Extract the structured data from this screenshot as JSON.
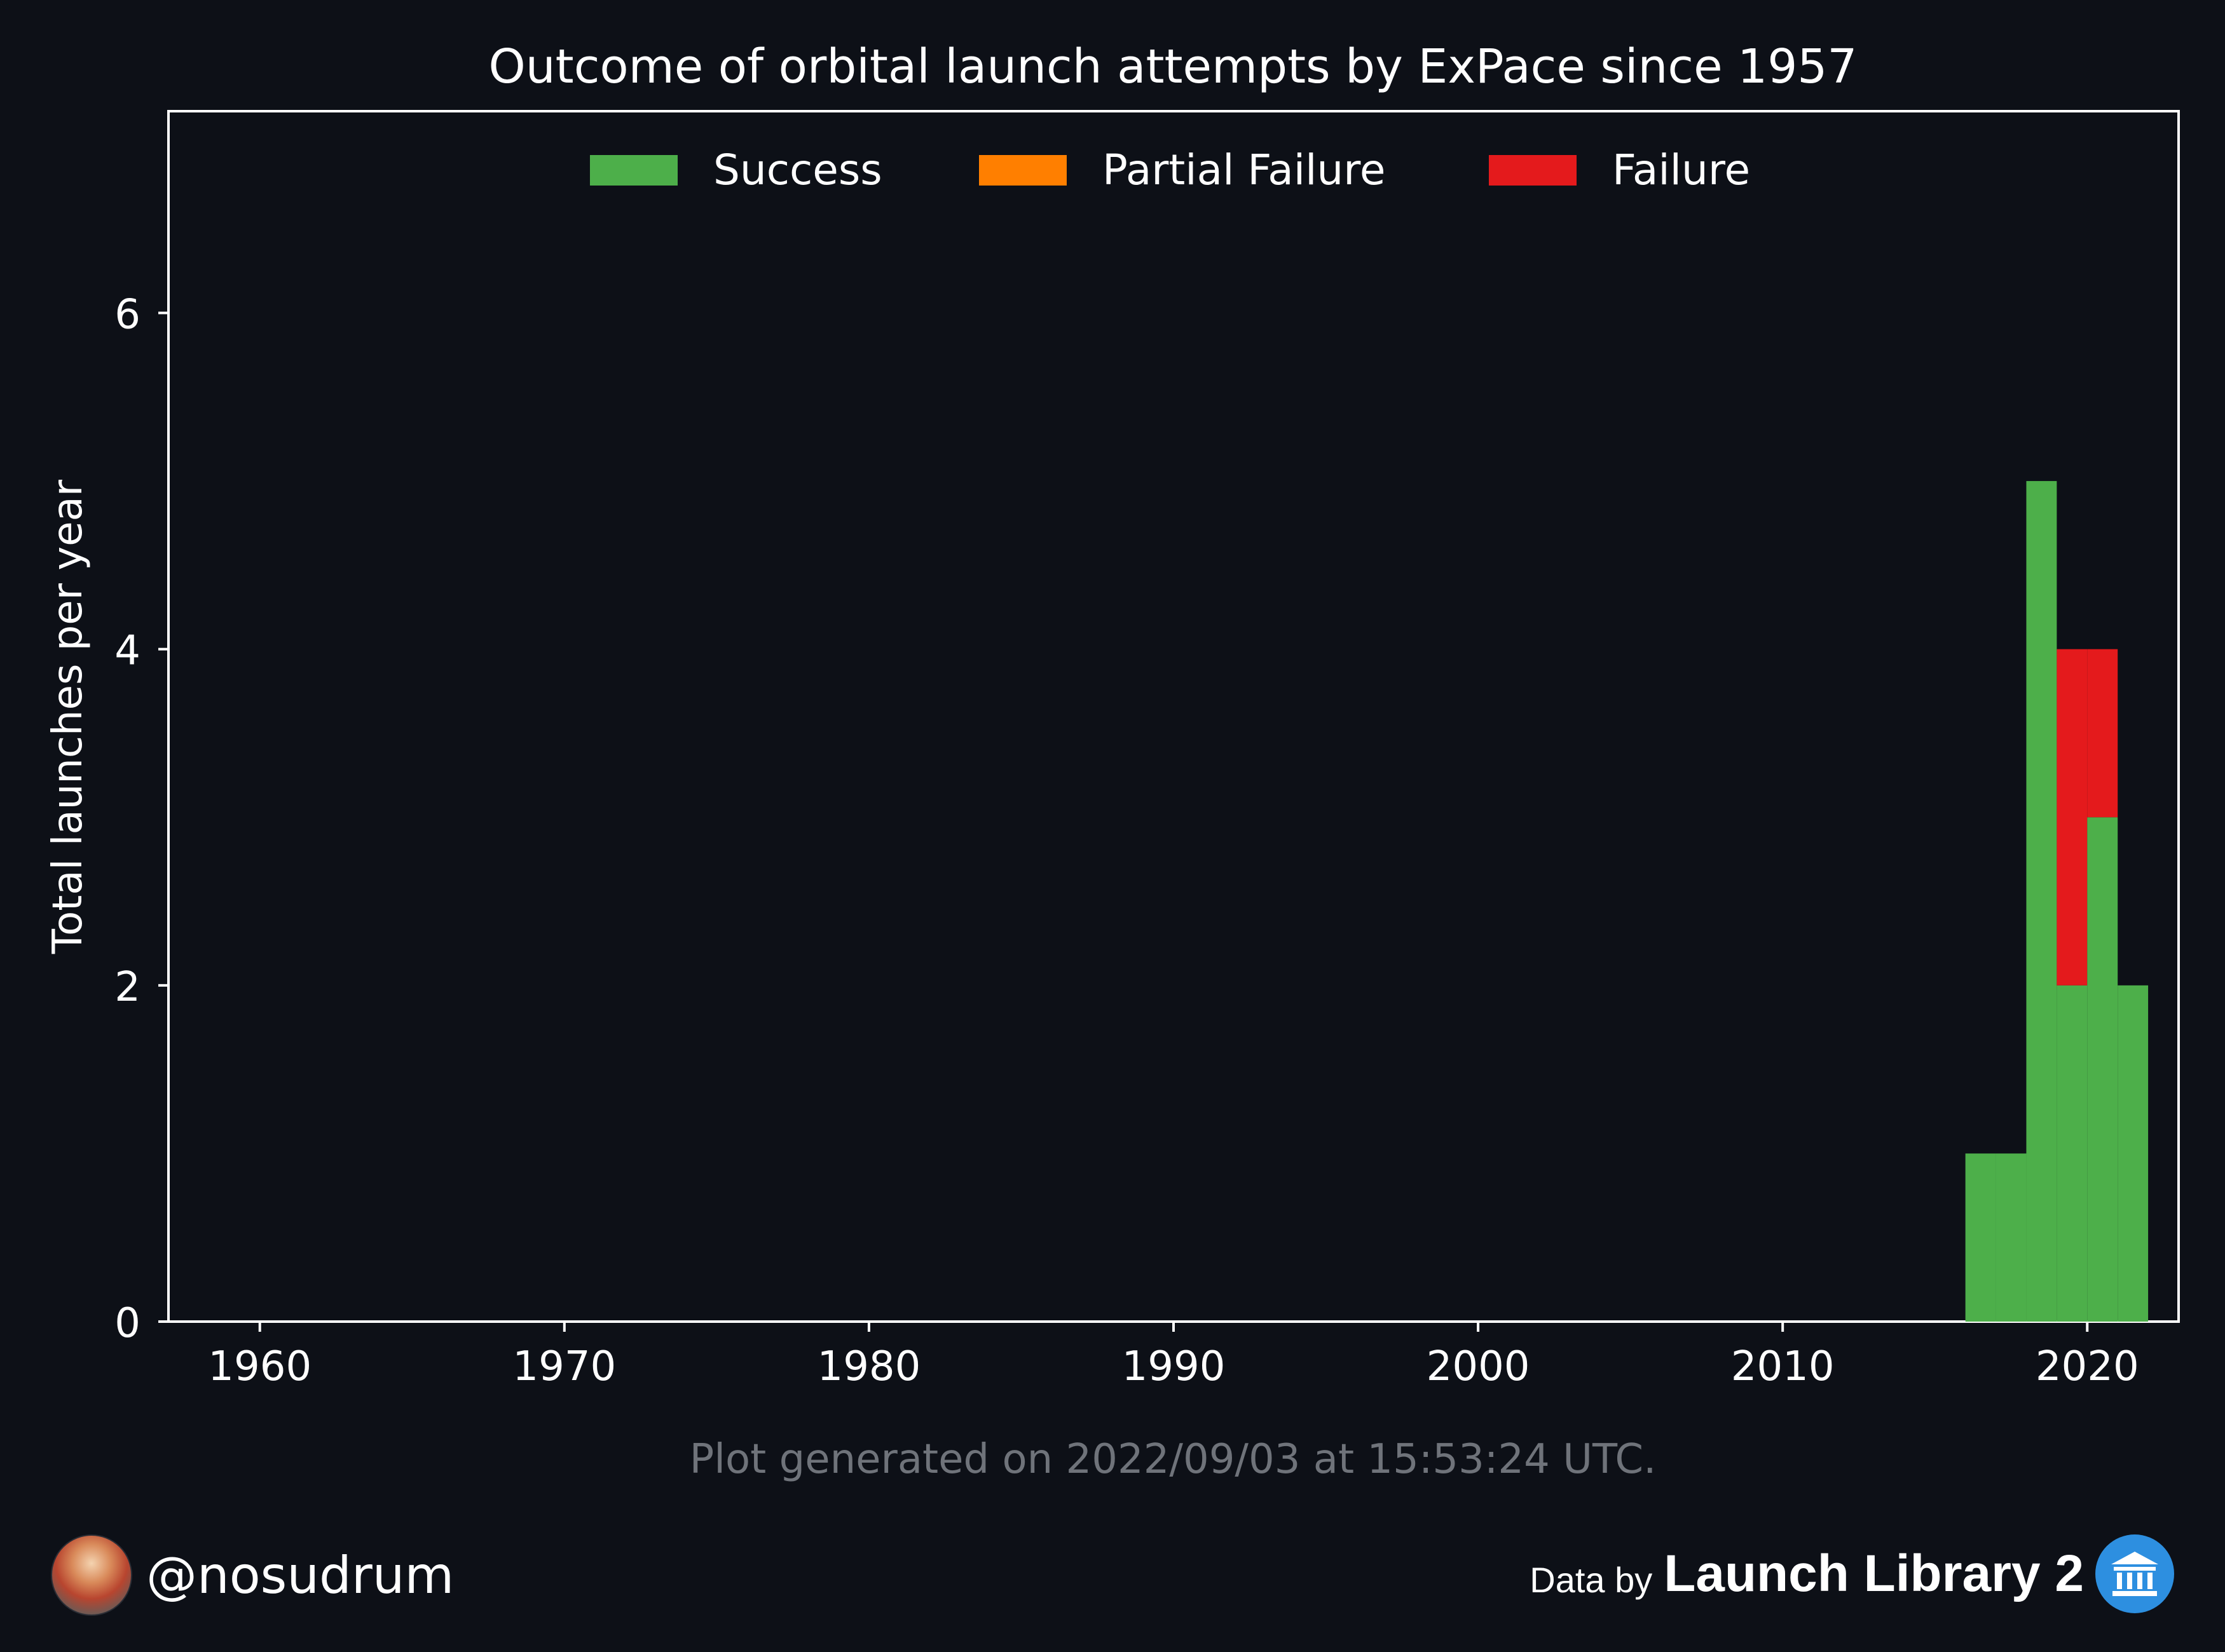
{
  "chart_data": {
    "type": "bar",
    "title": "Outcome of orbital launch attempts by ExPace since 1957",
    "xlabel": "",
    "ylabel": "Total launches per year",
    "xlim": [
      1957,
      2023
    ],
    "ylim": [
      0,
      7.2
    ],
    "xticks": [
      1960,
      1970,
      1980,
      1990,
      2000,
      2010,
      2020
    ],
    "yticks": [
      0,
      2,
      4,
      6
    ],
    "stacked": true,
    "legend_position": "top-center",
    "grid": false,
    "categories": [
      2017,
      2018,
      2019,
      2020,
      2021,
      2022
    ],
    "series": [
      {
        "name": "Success",
        "color": "#4daf4a",
        "values": [
          1,
          1,
          5,
          2,
          3,
          2
        ]
      },
      {
        "name": "Partial Failure",
        "color": "#ff7f00",
        "values": [
          0,
          0,
          0,
          0,
          0,
          0
        ]
      },
      {
        "name": "Failure",
        "color": "#e41a1c",
        "values": [
          0,
          0,
          0,
          2,
          1,
          0
        ]
      }
    ],
    "footnote": "Plot generated on 2022/09/03 at 15:53:24 UTC."
  },
  "footer": {
    "handle": "@nosudrum",
    "data_by": "Data by",
    "source": "Launch Library 2",
    "avatar_icon": "astronaut-avatar-icon",
    "source_icon": "bank-building-icon"
  },
  "colors": {
    "background": "#0d1017",
    "text": "#ffffff",
    "muted": "#6f737a",
    "logo": "#2d8fe0"
  }
}
